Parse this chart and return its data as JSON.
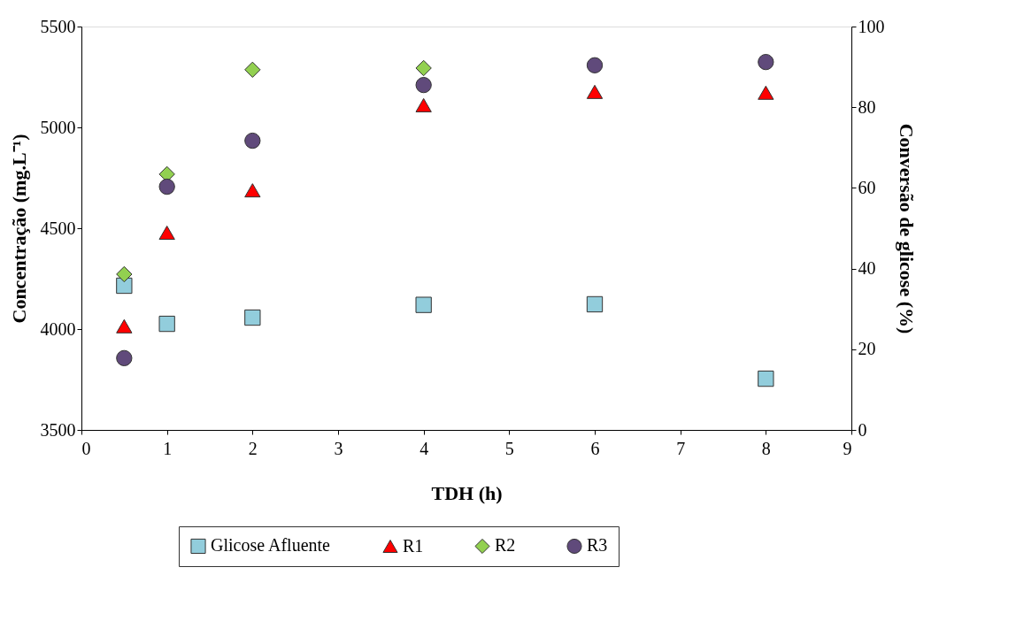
{
  "chart_data": {
    "type": "scatter",
    "xlabel": "TDH (h)",
    "ylabel": "Concentração (mg.L⁻¹)",
    "y2label": "Conversão de glicose (%)",
    "x": [
      0.5,
      1,
      2,
      4,
      6,
      8
    ],
    "xlim": [
      0,
      9
    ],
    "xticks": [
      0,
      1,
      2,
      3,
      4,
      5,
      6,
      7,
      8,
      9
    ],
    "ylim": [
      3500,
      5500
    ],
    "yticks": [
      3500,
      4000,
      4500,
      5000,
      5500
    ],
    "y2lim": [
      0,
      100
    ],
    "y2ticks": [
      0,
      20,
      40,
      60,
      80,
      100
    ],
    "grid": false,
    "legend": "bottom",
    "series": [
      {
        "name": "Glicose Afluente",
        "color": "#92cddc",
        "marker": "square",
        "axis": "y",
        "values": [
          4215,
          4026,
          4057,
          4120,
          4123,
          3754
        ]
      },
      {
        "name": "R1",
        "color": "#ff0000",
        "marker": "triangle",
        "axis": "y2",
        "values": [
          25.7,
          48.9,
          59.4,
          80.5,
          83.8,
          83.6
        ]
      },
      {
        "name": "R2",
        "color": "#92d050",
        "marker": "diamond",
        "axis": "y2",
        "values": [
          38.6,
          63.4,
          89.3,
          89.7,
          null,
          null
        ]
      },
      {
        "name": "R3",
        "color": "#604a7b",
        "marker": "circle",
        "axis": "y2",
        "values": [
          17.8,
          60.3,
          71.7,
          85.5,
          90.4,
          91.2
        ]
      }
    ]
  }
}
